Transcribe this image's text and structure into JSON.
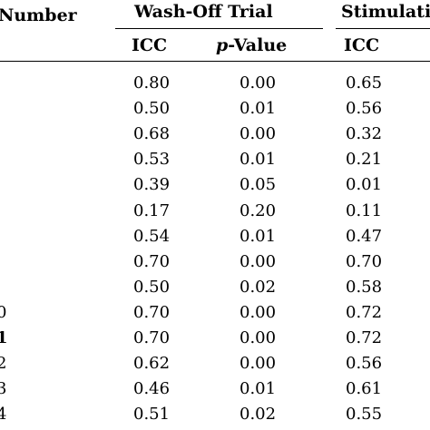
{
  "header": {
    "col_number": "Number",
    "group_wash_off": "Wash-Off Trial",
    "group_stimulation": "Stimulati",
    "sub_icc_1": "ICC",
    "sub_p": "p",
    "sub_value": "-Value",
    "sub_icc_2": "ICC"
  },
  "rows": [
    {
      "num": "",
      "icc1": "0.80",
      "p": "0.00",
      "icc2": "0.65"
    },
    {
      "num": "",
      "icc1": "0.50",
      "p": "0.01",
      "icc2": "0.56"
    },
    {
      "num": "",
      "icc1": "0.68",
      "p": "0.00",
      "icc2": "0.32"
    },
    {
      "num": "",
      "icc1": "0.53",
      "p": "0.01",
      "icc2": "0.21"
    },
    {
      "num": "",
      "icc1": "0.39",
      "p": "0.05",
      "icc2": "0.01"
    },
    {
      "num": "",
      "icc1": "0.17",
      "p": "0.20",
      "icc2": "0.11"
    },
    {
      "num": "",
      "icc1": "0.54",
      "p": "0.01",
      "icc2": "0.47"
    },
    {
      "num": "",
      "icc1": "0.70",
      "p": "0.00",
      "icc2": "0.70"
    },
    {
      "num": "",
      "icc1": "0.50",
      "p": "0.02",
      "icc2": "0.58"
    },
    {
      "num": "0",
      "icc1": "0.70",
      "p": "0.00",
      "icc2": "0.72"
    },
    {
      "num": "1",
      "icc1": "0.70",
      "p": "0.00",
      "icc2": "0.72",
      "bold": true
    },
    {
      "num": "2",
      "icc1": "0.62",
      "p": "0.00",
      "icc2": "0.56"
    },
    {
      "num": "3",
      "icc1": "0.46",
      "p": "0.01",
      "icc2": "0.61"
    },
    {
      "num": "4",
      "icc1": "0.51",
      "p": "0.02",
      "icc2": "0.55"
    }
  ]
}
